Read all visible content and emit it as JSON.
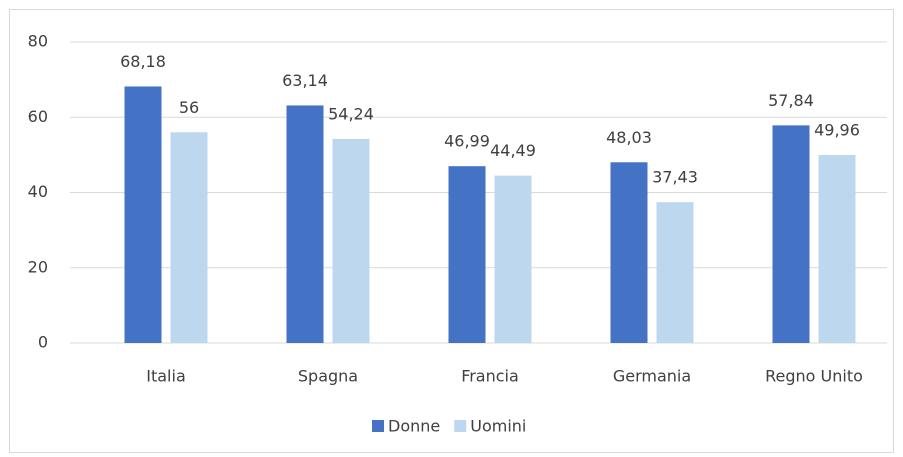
{
  "chart_data": {
    "type": "bar",
    "categories": [
      "Italia",
      "Spagna",
      "Francia",
      "Germania",
      "Regno Unito"
    ],
    "series": [
      {
        "name": "Donne",
        "color": "#4472c4",
        "values": [
          68.18,
          63.14,
          46.99,
          48.03,
          57.84
        ],
        "value_labels": [
          "68,18",
          "63,14",
          "46,99",
          "48,03",
          "57,84"
        ]
      },
      {
        "name": "Uomini",
        "color": "#bdd7ee",
        "values": [
          56,
          54.24,
          44.49,
          37.43,
          49.96
        ],
        "value_labels": [
          "56",
          "54,24",
          "44,49",
          "37,43",
          "49,96"
        ]
      }
    ],
    "ylim": [
      0,
      80
    ],
    "yticks": [
      0,
      20,
      40,
      60,
      80
    ],
    "grid": true,
    "legend": "bottom"
  }
}
